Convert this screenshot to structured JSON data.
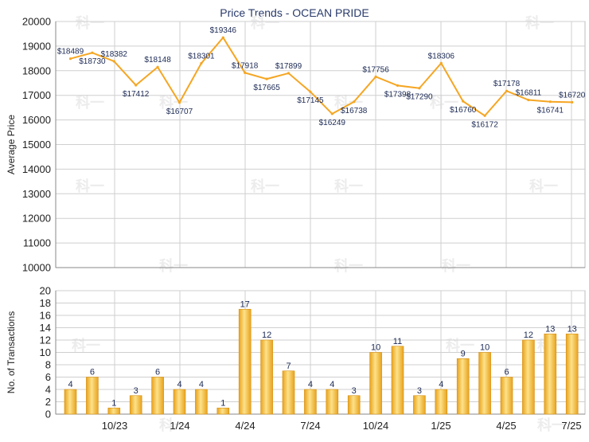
{
  "title": "Price Trends - OCEAN PRIDE",
  "colors": {
    "line": "#f5a623",
    "bar_light": "#fde28a",
    "bar_dark": "#e8a21c",
    "grid": "#cfcfcf",
    "text": "#1c2a55"
  },
  "watermark": "科一",
  "chart_data": [
    {
      "type": "line",
      "ylabel": "Average Price",
      "ylim": [
        10000,
        20000
      ],
      "yticks": [
        20000,
        19000,
        18000,
        17000,
        16000,
        15000,
        14000,
        13000,
        12000,
        11000,
        10000
      ],
      "grid": true,
      "label_prefix": "$",
      "series": [
        {
          "values": [
            18489,
            18730,
            18382,
            17412,
            18148,
            16707,
            18301,
            19346,
            17918,
            17665,
            17899,
            17145,
            16249,
            16738,
            17756,
            17398,
            17290,
            18306,
            16760,
            16172,
            17178,
            16811,
            16741,
            16720
          ]
        }
      ]
    },
    {
      "type": "bar",
      "xlabel": "",
      "ylabel": "No. of Transactions",
      "ylim": [
        0,
        20
      ],
      "yticks": [
        20,
        18,
        16,
        14,
        12,
        10,
        8,
        6,
        4,
        2,
        0
      ],
      "grid": true,
      "x_tick_labels": [
        "10/23",
        "1/24",
        "4/24",
        "7/24",
        "10/24",
        "1/25",
        "4/25",
        "7/25"
      ],
      "values": [
        4,
        6,
        1,
        3,
        6,
        4,
        4,
        1,
        17,
        12,
        7,
        4,
        4,
        3,
        10,
        11,
        3,
        4,
        9,
        10,
        6,
        12,
        13,
        13
      ]
    }
  ]
}
